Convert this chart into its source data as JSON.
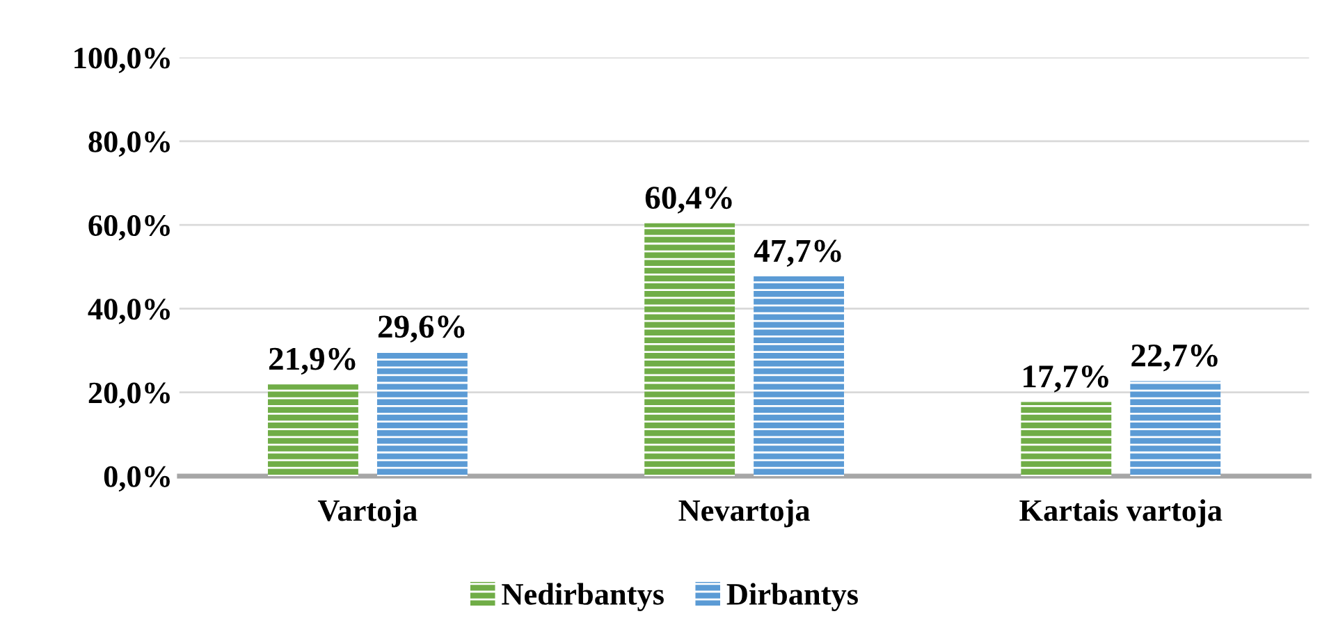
{
  "chart_data": {
    "type": "bar",
    "categories": [
      "Vartoja",
      "Nevartoja",
      "Kartais vartoja"
    ],
    "series": [
      {
        "name": "Nedirbantys",
        "color": "#70ad47",
        "values": [
          21.9,
          60.4,
          17.7
        ],
        "value_labels": [
          "21,9%",
          "60,4%",
          "17,7%"
        ]
      },
      {
        "name": "Dirbantys",
        "color": "#5b9bd5",
        "values": [
          29.6,
          47.7,
          22.7
        ],
        "value_labels": [
          "29,6%",
          "47,7%",
          "22,7%"
        ]
      }
    ],
    "ylim": [
      0,
      100
    ],
    "yticks": [
      {
        "value": 0,
        "label": "0,0%"
      },
      {
        "value": 20,
        "label": "20,0%"
      },
      {
        "value": 40,
        "label": "40,0%"
      },
      {
        "value": 60,
        "label": "60,0%"
      },
      {
        "value": 80,
        "label": "80,0%"
      },
      {
        "value": 100,
        "label": "100,0%"
      }
    ],
    "grid": "y",
    "legend": "bottom"
  }
}
